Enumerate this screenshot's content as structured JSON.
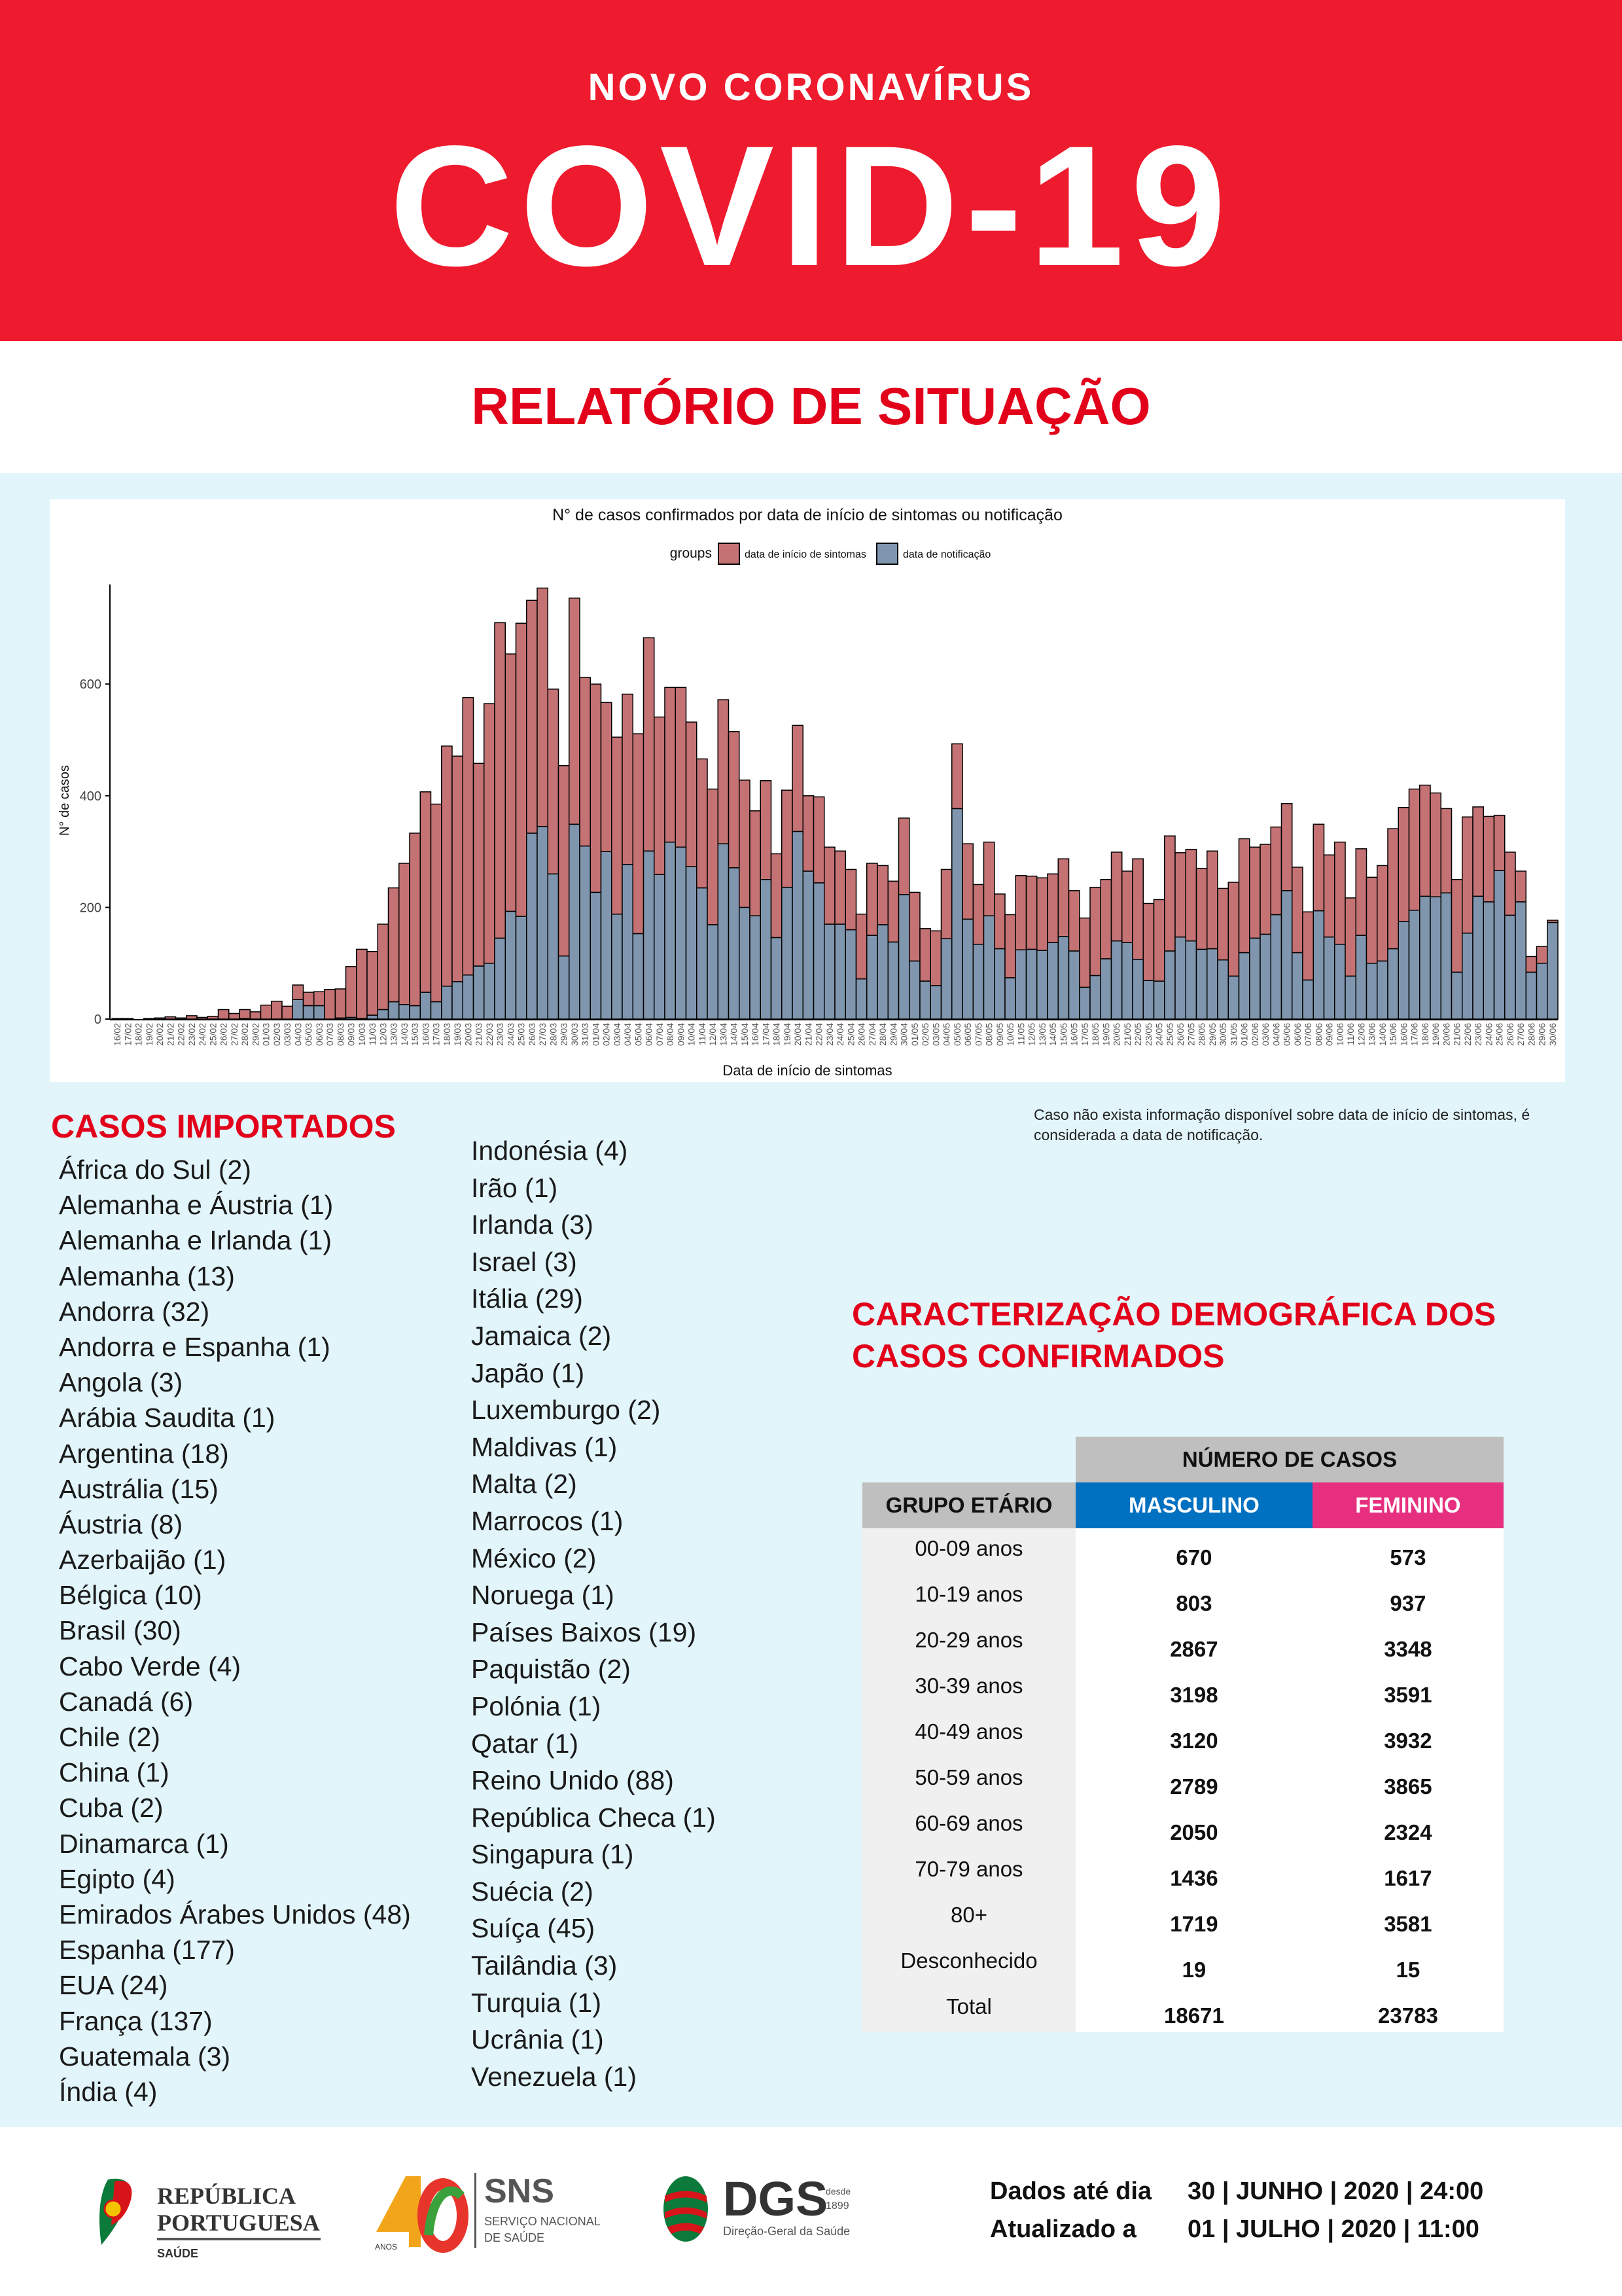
{
  "header": {
    "subtitle": "NOVO CORONAVÍRUS",
    "title": "COVID-19",
    "report": "RELATÓRIO DE SITUAÇÃO"
  },
  "chart_data": {
    "type": "bar",
    "stacked": true,
    "title": "N° de casos confirmados por data de início de sintomas ou notificação",
    "xlabel": "Data de início de sintomas",
    "ylabel": "N° de casos",
    "legend_title": "groups",
    "legend_position": "top",
    "ylim": [
      0,
      780
    ],
    "yticks": [
      "0",
      "200",
      "400",
      "600"
    ],
    "colors": {
      "inicio": "#c47273",
      "notificacao": "#7f96ae"
    },
    "categories": [
      "16/02",
      "17/02",
      "18/02",
      "19/02",
      "20/02",
      "21/02",
      "22/02",
      "23/02",
      "24/02",
      "25/02",
      "26/02",
      "27/02",
      "28/02",
      "29/02",
      "01/03",
      "02/03",
      "03/03",
      "04/03",
      "05/03",
      "06/03",
      "07/03",
      "08/03",
      "09/03",
      "10/03",
      "11/03",
      "12/03",
      "13/03",
      "14/03",
      "15/03",
      "16/03",
      "17/03",
      "18/03",
      "19/03",
      "20/03",
      "21/03",
      "22/03",
      "23/03",
      "24/03",
      "25/03",
      "26/03",
      "27/03",
      "28/03",
      "29/03",
      "30/03",
      "31/03",
      "01/04",
      "02/04",
      "03/04",
      "04/04",
      "05/04",
      "06/04",
      "07/04",
      "08/04",
      "09/04",
      "10/04",
      "11/04",
      "12/04",
      "13/04",
      "14/04",
      "15/04",
      "16/04",
      "17/04",
      "18/04",
      "19/04",
      "20/04",
      "21/04",
      "22/04",
      "23/04",
      "24/04",
      "25/04",
      "26/04",
      "27/04",
      "28/04",
      "29/04",
      "30/04",
      "01/05",
      "02/05",
      "03/05",
      "04/05",
      "05/05",
      "06/05",
      "07/05",
      "08/05",
      "09/05",
      "10/05",
      "11/05",
      "12/05",
      "13/05",
      "14/05",
      "15/05",
      "16/05",
      "17/05",
      "18/05",
      "19/05",
      "20/05",
      "21/05",
      "22/05",
      "23/05",
      "24/05",
      "25/05",
      "26/05",
      "27/05",
      "28/05",
      "29/05",
      "30/05",
      "31/05",
      "01/06",
      "02/06",
      "03/06",
      "04/06",
      "05/06",
      "06/06",
      "07/06",
      "08/06",
      "09/06",
      "10/06",
      "11/06",
      "12/06",
      "13/06",
      "14/06",
      "15/06",
      "16/06",
      "17/06",
      "18/06",
      "19/06",
      "20/06",
      "21/06",
      "22/06",
      "23/06",
      "24/06",
      "25/06",
      "26/06",
      "27/06",
      "28/06",
      "29/06",
      "30/06"
    ],
    "series": [
      {
        "name": "data de notificação",
        "values": [
          0,
          0,
          0,
          0,
          0,
          0,
          0,
          0,
          0,
          0,
          0,
          0,
          1,
          0,
          0,
          0,
          0,
          35,
          24,
          24,
          0,
          2,
          3,
          1,
          7,
          17,
          31,
          26,
          24,
          48,
          31,
          59,
          67,
          79,
          95,
          100,
          145,
          193,
          184,
          333,
          345,
          260,
          113,
          349,
          310,
          227,
          300,
          188,
          277,
          153,
          301,
          259,
          317,
          308,
          273,
          235,
          169,
          314,
          271,
          200,
          185,
          250,
          146,
          236,
          336,
          265,
          244,
          170,
          170,
          160,
          72,
          150,
          169,
          138,
          223,
          104,
          68,
          60,
          144,
          377,
          179,
          134,
          185,
          126,
          74,
          124,
          125,
          123,
          137,
          148,
          122,
          57,
          78,
          108,
          140,
          137,
          107,
          69,
          68,
          122,
          147,
          140,
          125,
          126,
          106,
          77,
          119,
          145,
          152,
          187,
          230,
          119,
          70,
          194,
          147,
          134,
          77,
          150,
          100,
          104,
          126,
          175,
          195,
          220,
          219,
          226,
          84,
          154,
          220,
          210,
          266,
          186,
          210,
          84,
          100,
          173
        ]
      },
      {
        "name": "data de início de sintomas",
        "values": [
          1,
          1,
          0,
          1,
          2,
          4,
          2,
          6,
          3,
          5,
          17,
          10,
          16,
          13,
          25,
          32,
          23,
          26,
          24,
          25,
          53,
          52,
          91,
          124,
          114,
          153,
          204,
          253,
          309,
          359,
          354,
          430,
          404,
          497,
          363,
          465,
          565,
          461,
          525,
          417,
          427,
          331,
          341,
          405,
          302,
          373,
          267,
          317,
          305,
          358,
          382,
          282,
          277,
          286,
          259,
          231,
          243,
          258,
          244,
          228,
          188,
          177,
          150,
          174,
          190,
          135,
          154,
          138,
          131,
          108,
          116,
          129,
          106,
          109,
          137,
          123,
          94,
          98,
          124,
          116,
          135,
          107,
          132,
          98,
          113,
          133,
          131,
          130,
          123,
          139,
          108,
          124,
          158,
          142,
          159,
          128,
          180,
          138,
          146,
          206,
          151,
          164,
          145,
          175,
          128,
          168,
          204,
          163,
          161,
          157,
          156,
          153,
          122,
          155,
          147,
          183,
          140,
          155,
          154,
          171,
          215,
          204,
          217,
          199,
          186,
          151,
          166,
          208,
          160,
          153,
          99,
          113,
          55,
          28,
          30,
          4
        ]
      }
    ]
  },
  "chart_note": "Caso não exista informação disponível sobre data de início de sintomas, é considerada a data de notificação.",
  "imported": {
    "title": "CASOS IMPORTADOS",
    "col1": [
      "África do Sul (2)",
      "Alemanha e Áustria (1)",
      "Alemanha e Irlanda (1)",
      "Alemanha (13)",
      "Andorra (32)",
      "Andorra e Espanha (1)",
      "Angola (3)",
      "Arábia Saudita (1)",
      "Argentina (18)",
      "Austrália (15)",
      "Áustria (8)",
      "Azerbaijão (1)",
      "Bélgica (10)",
      "Brasil (30)",
      "Cabo Verde (4)",
      "Canadá (6)",
      "Chile (2)",
      "China (1)",
      "Cuba (2)",
      "Dinamarca (1)",
      "Egipto (4)",
      "Emirados Árabes Unidos (48)",
      "Espanha (177)",
      "EUA (24)",
      "França (137)",
      "Guatemala (3)",
      "Índia (4)"
    ],
    "col2": [
      "Indonésia (4)",
      "Irão (1)",
      "Irlanda (3)",
      "Israel (3)",
      "Itália (29)",
      "Jamaica (2)",
      "Japão (1)",
      "Luxemburgo (2)",
      "Maldivas (1)",
      "Malta (2)",
      "Marrocos (1)",
      "México (2)",
      "Noruega (1)",
      "Países Baixos (19)",
      "Paquistão (2)",
      "Polónia (1)",
      "Qatar (1)",
      "Reino Unido (88)",
      "República Checa (1)",
      "Singapura (1)",
      "Suécia (2)",
      "Suíça (45)",
      "Tailândia (3)",
      "Turquia (1)",
      "Ucrânia (1)",
      "Venezuela (1)"
    ]
  },
  "demographics": {
    "title_line1": "CARACTERIZAÇÃO DEMOGRÁFICA DOS",
    "title_line2": "CASOS CONFIRMADOS",
    "header_cases": "NÚMERO DE CASOS",
    "header_group": "GRUPO ETÁRIO",
    "header_m": "MASCULINO",
    "header_f": "FEMININO",
    "rows": [
      {
        "g": "00-09 anos",
        "m": "670",
        "f": "573"
      },
      {
        "g": "10-19 anos",
        "m": "803",
        "f": "937"
      },
      {
        "g": "20-29 anos",
        "m": "2867",
        "f": "3348"
      },
      {
        "g": "30-39 anos",
        "m": "3198",
        "f": "3591"
      },
      {
        "g": "40-49 anos",
        "m": "3120",
        "f": "3932"
      },
      {
        "g": "50-59 anos",
        "m": "2789",
        "f": "3865"
      },
      {
        "g": "60-69 anos",
        "m": "2050",
        "f": "2324"
      },
      {
        "g": "70-79 anos",
        "m": "1436",
        "f": "1617"
      },
      {
        "g": "80+",
        "m": "1719",
        "f": "3581"
      },
      {
        "g": "Desconhecido",
        "m": "19",
        "f": "15"
      },
      {
        "g": "Total",
        "m": "18671",
        "f": "23783"
      }
    ]
  },
  "footer": {
    "logo_rp": [
      "REPÚBLICA",
      "PORTUGUESA",
      "SAÚDE"
    ],
    "logo_sns": [
      "SNS",
      "SERVIÇO NACIONAL",
      "DE SAÚDE",
      "ANOS"
    ],
    "logo_dgs": [
      "DGS",
      "desde",
      "1899",
      "Direção-Geral da Saúde"
    ],
    "data_label": "Dados até dia",
    "data_value": "30 | JUNHO | 2020 | 24:00",
    "updated_label": "Atualizado a",
    "updated_value": "01 | JULHO | 2020 | 11:00"
  }
}
